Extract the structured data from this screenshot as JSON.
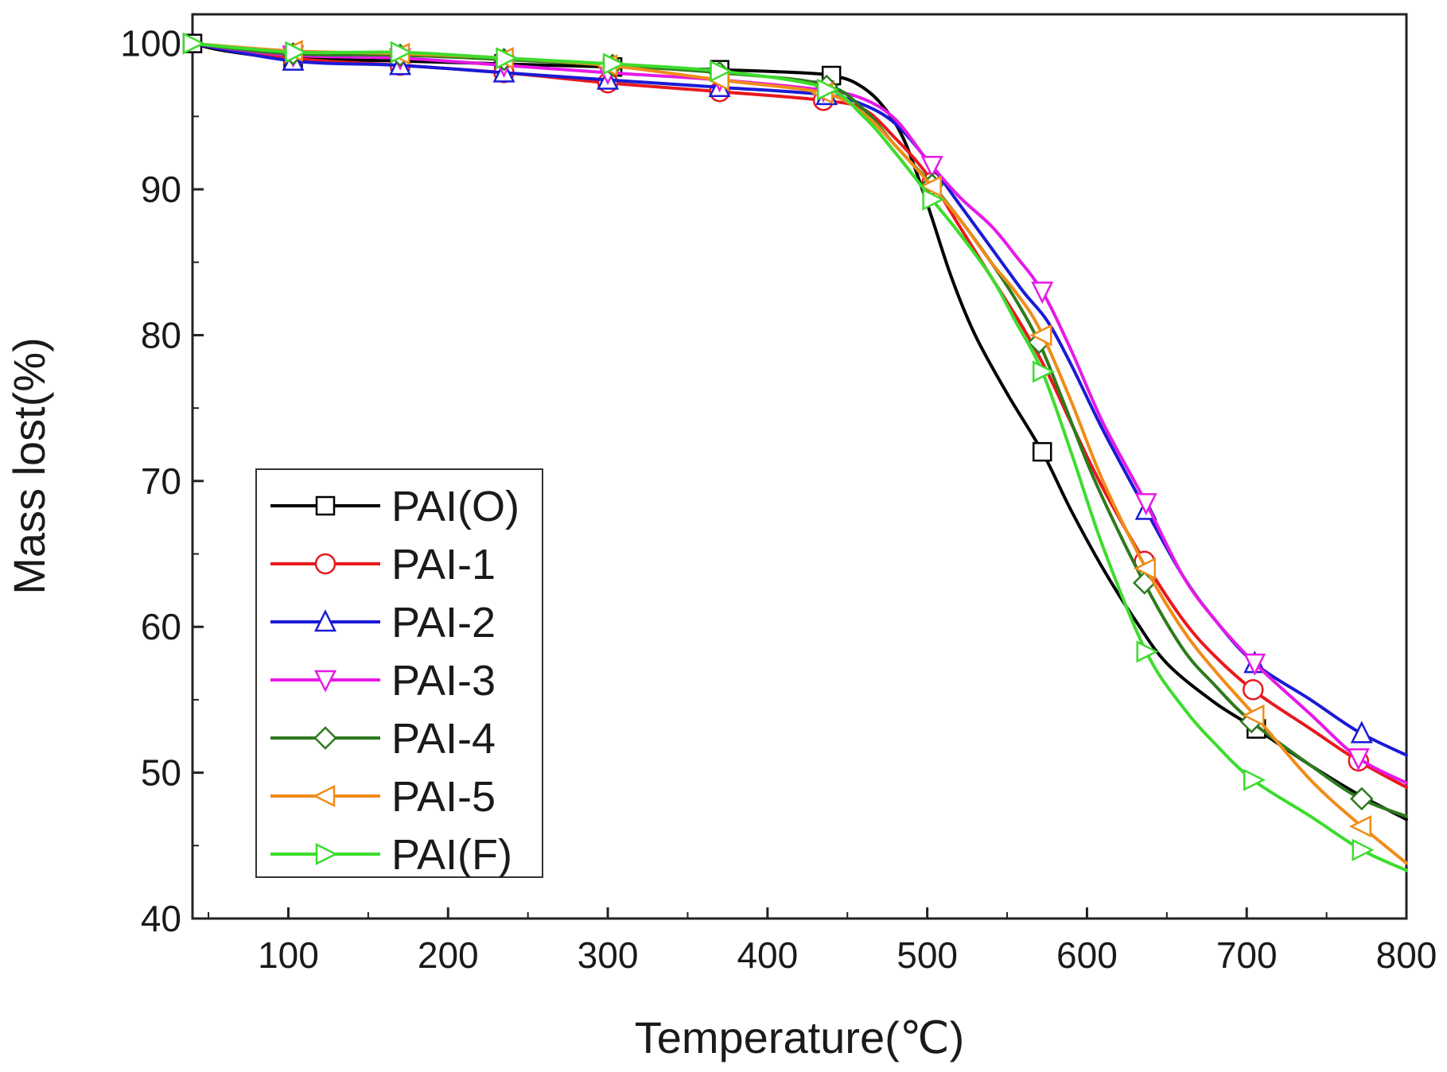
{
  "chart_data": {
    "type": "line",
    "title": "",
    "xlabel": "Temperature(℃)",
    "ylabel": "Mass lost(%)",
    "xlim": [
      40,
      800
    ],
    "ylim": [
      40,
      102
    ],
    "x_ticks": [
      100,
      200,
      300,
      400,
      500,
      600,
      700,
      800
    ],
    "y_ticks": [
      40,
      50,
      60,
      70,
      80,
      90,
      100
    ],
    "x_tick_labels": [
      "100",
      "200",
      "300",
      "400",
      "500",
      "600",
      "700",
      "800"
    ],
    "y_tick_labels": [
      "40",
      "50",
      "60",
      "70",
      "80",
      "90",
      "100"
    ],
    "grid": false,
    "legend_position": "bottom-left",
    "series": [
      {
        "name": "PAI(O)",
        "color": "#000000",
        "marker": "square",
        "x": [
          40,
          60,
          100,
          170,
          235,
          300,
          370,
          420,
          440,
          455,
          470,
          485,
          500,
          515,
          530,
          550,
          572,
          590,
          610,
          630,
          650,
          680,
          706,
          740,
          770,
          800
        ],
        "y": [
          100,
          99.5,
          99.0,
          98.8,
          98.6,
          98.4,
          98.2,
          98.0,
          97.8,
          97.3,
          96,
          93.5,
          89,
          84,
          80,
          76,
          72,
          68,
          64,
          60.5,
          57.5,
          54.8,
          53.0,
          50.5,
          48.5,
          46.8
        ]
      },
      {
        "name": "PAI-1",
        "color": "#e8191c",
        "marker": "circle",
        "x": [
          40,
          100,
          170,
          235,
          300,
          370,
          435,
          460,
          480,
          500,
          520,
          540,
          560,
          575,
          590,
          610,
          636,
          660,
          680,
          706,
          740,
          770,
          800
        ],
        "y": [
          100,
          99.0,
          98.5,
          98.0,
          97.3,
          96.7,
          96.1,
          95.5,
          93.5,
          91,
          87.5,
          84,
          80.5,
          77.5,
          74,
          69.5,
          64.5,
          60.5,
          58,
          55.5,
          53,
          50.8,
          49.0
        ]
      },
      {
        "name": "PAI-2",
        "color": "#1a1ad6",
        "marker": "triangle-up",
        "x": [
          40,
          103,
          170,
          235,
          300,
          370,
          435,
          460,
          480,
          500,
          520,
          540,
          560,
          575,
          590,
          610,
          637,
          660,
          680,
          705,
          740,
          770,
          800
        ],
        "y": [
          100,
          98.8,
          98.5,
          98.0,
          97.5,
          97.0,
          96.5,
          95.8,
          94.5,
          92,
          89,
          86,
          83,
          81,
          78,
          73.5,
          68,
          63.5,
          60.5,
          57.5,
          55,
          52.8,
          51.2
        ]
      },
      {
        "name": "PAI-3",
        "color": "#e61ae6",
        "marker": "triangle-down",
        "x": [
          40,
          100,
          170,
          235,
          300,
          370,
          435,
          460,
          480,
          500,
          520,
          540,
          555,
          572,
          590,
          610,
          637,
          660,
          680,
          705,
          740,
          770,
          800
        ],
        "y": [
          100,
          99.2,
          99.0,
          98.5,
          98.0,
          97.5,
          96.8,
          96.2,
          94.8,
          92,
          89.5,
          87.5,
          85.5,
          83,
          79,
          74,
          68.5,
          63.5,
          60.5,
          57.5,
          54,
          51,
          49.3
        ]
      },
      {
        "name": "PAI-4",
        "color": "#2d7a1e",
        "marker": "diamond",
        "x": [
          40,
          100,
          170,
          235,
          303,
          370,
          435,
          460,
          480,
          503,
          520,
          540,
          555,
          570,
          585,
          605,
          635,
          660,
          680,
          703,
          740,
          770,
          800
        ],
        "y": [
          100,
          99.3,
          99.2,
          98.9,
          98.5,
          98.0,
          97.2,
          95.5,
          93,
          90.3,
          88,
          85,
          82.5,
          79.5,
          75.5,
          70,
          63.2,
          58.5,
          56,
          53.5,
          50.5,
          48.3,
          47.0
        ]
      },
      {
        "name": "PAI-5",
        "color": "#f08c1a",
        "marker": "triangle-left",
        "x": [
          40,
          100,
          170,
          235,
          300,
          370,
          435,
          460,
          480,
          503,
          520,
          540,
          555,
          570,
          590,
          610,
          637,
          660,
          680,
          706,
          740,
          770,
          800
        ],
        "y": [
          100,
          99.5,
          99.3,
          99.0,
          98.5,
          97.5,
          96.6,
          95.2,
          93,
          90.2,
          88,
          85,
          83,
          80.5,
          75.5,
          70,
          64,
          59.8,
          57,
          53.8,
          49.5,
          46.5,
          43.8
        ]
      },
      {
        "name": "PAI(F)",
        "color": "#3ddc2e",
        "marker": "triangle-right",
        "x": [
          40,
          104,
          170,
          235,
          303,
          370,
          435,
          460,
          480,
          503,
          520,
          540,
          555,
          572,
          590,
          610,
          637,
          660,
          680,
          704,
          740,
          772,
          800
        ],
        "y": [
          100,
          99.4,
          99.4,
          99.0,
          98.6,
          98.1,
          97.0,
          95.0,
          92.5,
          89.3,
          87,
          84,
          81,
          77.5,
          72,
          65.5,
          58.3,
          54.5,
          52,
          49.5,
          47,
          44.7,
          43.3
        ]
      }
    ]
  }
}
